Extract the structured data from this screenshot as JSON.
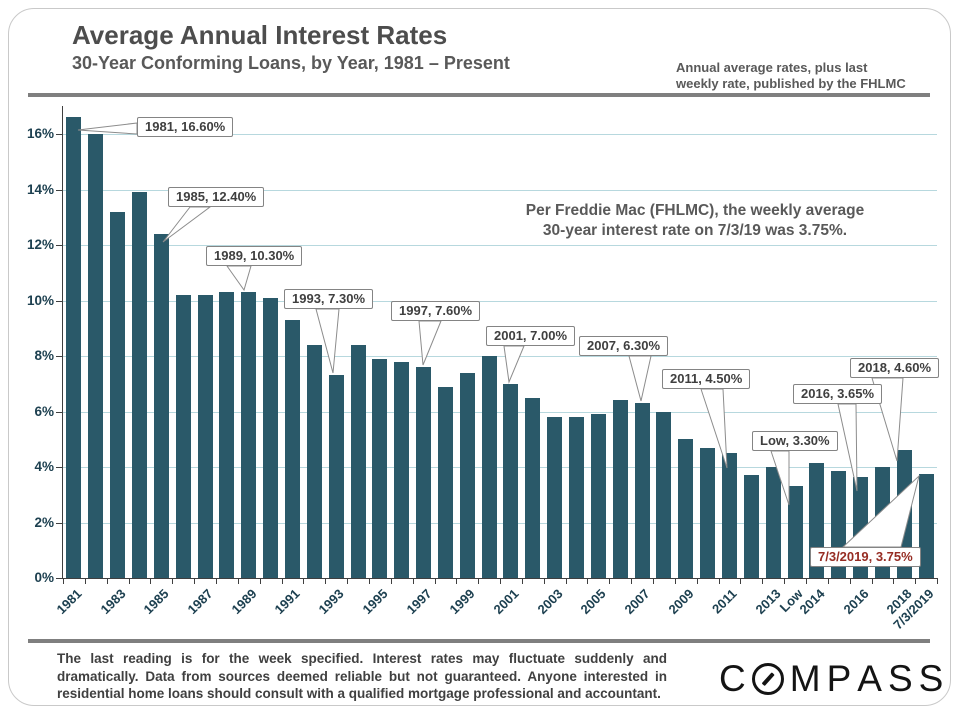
{
  "header": {
    "title": "Average Annual Interest Rates",
    "subtitle": "30-Year Conforming Loans, by Year, 1981 – Present",
    "note_line1": "Annual average rates, plus last",
    "note_line2": "weekly rate, published by the FHLMC"
  },
  "annotation": {
    "line1": "Per Freddie Mac (FHLMC), the weekly average",
    "line2": "30-year interest rate on 7/3/19 was 3.75%."
  },
  "chart_data": {
    "type": "bar",
    "title": "Average Annual Interest Rates",
    "xlabel": "",
    "ylabel": "",
    "ylim": [
      0,
      16.85
    ],
    "grid": true,
    "categories": [
      "1981",
      "1982",
      "1983",
      "1984",
      "1985",
      "1986",
      "1987",
      "1988",
      "1989",
      "1990",
      "1991",
      "1992",
      "1993",
      "1994",
      "1995",
      "1996",
      "1997",
      "1998",
      "1999",
      "2000",
      "2001",
      "2002",
      "2003",
      "2004",
      "2005",
      "2006",
      "2007",
      "2008",
      "2009",
      "2010",
      "2011",
      "2012",
      "2013",
      "Low",
      "2014",
      "2015",
      "2016",
      "2017",
      "2018",
      "7/3/2019"
    ],
    "values": [
      16.6,
      16.0,
      13.2,
      13.9,
      12.4,
      10.2,
      10.2,
      10.3,
      10.3,
      10.1,
      9.3,
      8.4,
      7.3,
      8.4,
      7.9,
      7.8,
      7.6,
      6.9,
      7.4,
      8.0,
      7.0,
      6.5,
      5.8,
      5.8,
      5.9,
      6.4,
      6.3,
      6.0,
      5.0,
      4.7,
      4.5,
      3.7,
      4.0,
      3.3,
      4.15,
      3.85,
      3.65,
      4.0,
      4.6,
      3.75
    ],
    "y_axis": {
      "labels": [
        "0%",
        "2%",
        "4%",
        "6%",
        "8%",
        "10%",
        "12%",
        "14%",
        "16%"
      ],
      "values": [
        0,
        2,
        4,
        6,
        8,
        10,
        12,
        14,
        16
      ]
    },
    "x_tick_labels": [
      {
        "i": 0,
        "label": "1981"
      },
      {
        "i": 2,
        "label": "1983"
      },
      {
        "i": 4,
        "label": "1985"
      },
      {
        "i": 6,
        "label": "1987"
      },
      {
        "i": 8,
        "label": "1989"
      },
      {
        "i": 10,
        "label": "1991"
      },
      {
        "i": 12,
        "label": "1993"
      },
      {
        "i": 14,
        "label": "1995"
      },
      {
        "i": 16,
        "label": "1997"
      },
      {
        "i": 18,
        "label": "1999"
      },
      {
        "i": 20,
        "label": "2001"
      },
      {
        "i": 22,
        "label": "2003"
      },
      {
        "i": 24,
        "label": "2005"
      },
      {
        "i": 26,
        "label": "2007"
      },
      {
        "i": 28,
        "label": "2009"
      },
      {
        "i": 30,
        "label": "2011"
      },
      {
        "i": 32,
        "label": "2013"
      },
      {
        "i": 33,
        "label": "Low"
      },
      {
        "i": 34,
        "label": "2014"
      },
      {
        "i": 36,
        "label": "2016"
      },
      {
        "i": 38,
        "label": "2018"
      },
      {
        "i": 39,
        "label": "7/3/2019"
      }
    ],
    "callouts": [
      {
        "text": "1981, 16.60%"
      },
      {
        "text": "1985, 12.40%"
      },
      {
        "text": "1989, 10.30%"
      },
      {
        "text": "1993, 7.30%"
      },
      {
        "text": "1997, 7.60%"
      },
      {
        "text": "2001, 7.00%"
      },
      {
        "text": "2007, 6.30%"
      },
      {
        "text": "2011, 4.50%"
      },
      {
        "text": "Low, 3.30%"
      },
      {
        "text": "2016, 3.65%"
      },
      {
        "text": "2018, 4.60%"
      },
      {
        "text": "7/3/2019, 3.75%"
      }
    ],
    "legend": null
  },
  "colors": {
    "bar": "#2a5969",
    "gridline": "#b7d8de",
    "axis_text": "#1d4050",
    "title_text": "#4d4d4d",
    "body_text_gray": "#595959",
    "callout_text": "#3f3f3f",
    "callout_red": "#962c23",
    "divider_gray": "#7f7f7f",
    "logo_black": "#141414"
  },
  "footer": {
    "disclaimer": "The last reading is for the week specified. Interest rates may fluctuate suddenly and dramatically. Data from sources deemed reliable but not guaranteed. Anyone interested in residential home loans should consult with a qualified mortgage professional and accountant.",
    "logo": "COMPASS"
  }
}
